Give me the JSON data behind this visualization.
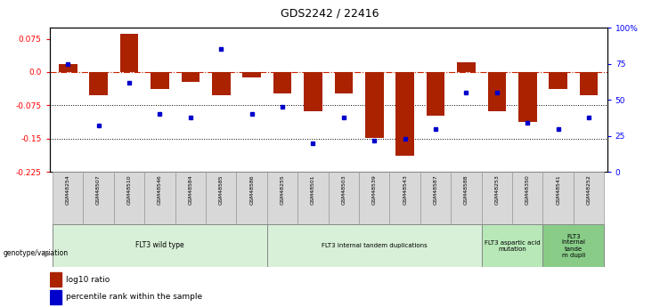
{
  "title": "GDS2242 / 22416",
  "samples": [
    "GSM48254",
    "GSM48507",
    "GSM48510",
    "GSM48546",
    "GSM48584",
    "GSM48585",
    "GSM48586",
    "GSM48255",
    "GSM48501",
    "GSM48503",
    "GSM48539",
    "GSM48543",
    "GSM48587",
    "GSM48588",
    "GSM48253",
    "GSM48350",
    "GSM48541",
    "GSM48252"
  ],
  "log10_ratio": [
    0.018,
    -0.052,
    0.087,
    -0.038,
    -0.022,
    -0.052,
    -0.012,
    -0.048,
    -0.088,
    -0.048,
    -0.148,
    -0.188,
    -0.098,
    0.022,
    -0.088,
    -0.112,
    -0.038,
    -0.052
  ],
  "percentile_rank": [
    75,
    32,
    62,
    40,
    38,
    85,
    40,
    45,
    20,
    38,
    22,
    23,
    30,
    55,
    55,
    34,
    30,
    38
  ],
  "groups": [
    {
      "label": "FLT3 wild type",
      "start": 0,
      "end": 7,
      "color": "#d8f0d8"
    },
    {
      "label": "FLT3 internal tandem duplications",
      "start": 7,
      "end": 14,
      "color": "#d8f0d8"
    },
    {
      "label": "FLT3 aspartic acid\nmutation",
      "start": 14,
      "end": 16,
      "color": "#b8e8b8"
    },
    {
      "label": "FLT3\ninternal\ntande\nm dupli",
      "start": 16,
      "end": 18,
      "color": "#88cc88"
    }
  ],
  "bar_color": "#aa2200",
  "dot_color": "#0000cc",
  "ylim_left": [
    -0.225,
    0.1
  ],
  "ylim_right": [
    0,
    100
  ],
  "yticks_left": [
    0.075,
    0.0,
    -0.075,
    -0.15,
    -0.225
  ],
  "yticks_right": [
    100,
    75,
    50,
    25,
    0
  ],
  "hlines": [
    -0.075,
    -0.15
  ],
  "legend_bar": "log10 ratio",
  "legend_dot": "percentile rank within the sample",
  "sample_cell_color": "#d8d8d8",
  "sample_cell_edge": "#999999"
}
